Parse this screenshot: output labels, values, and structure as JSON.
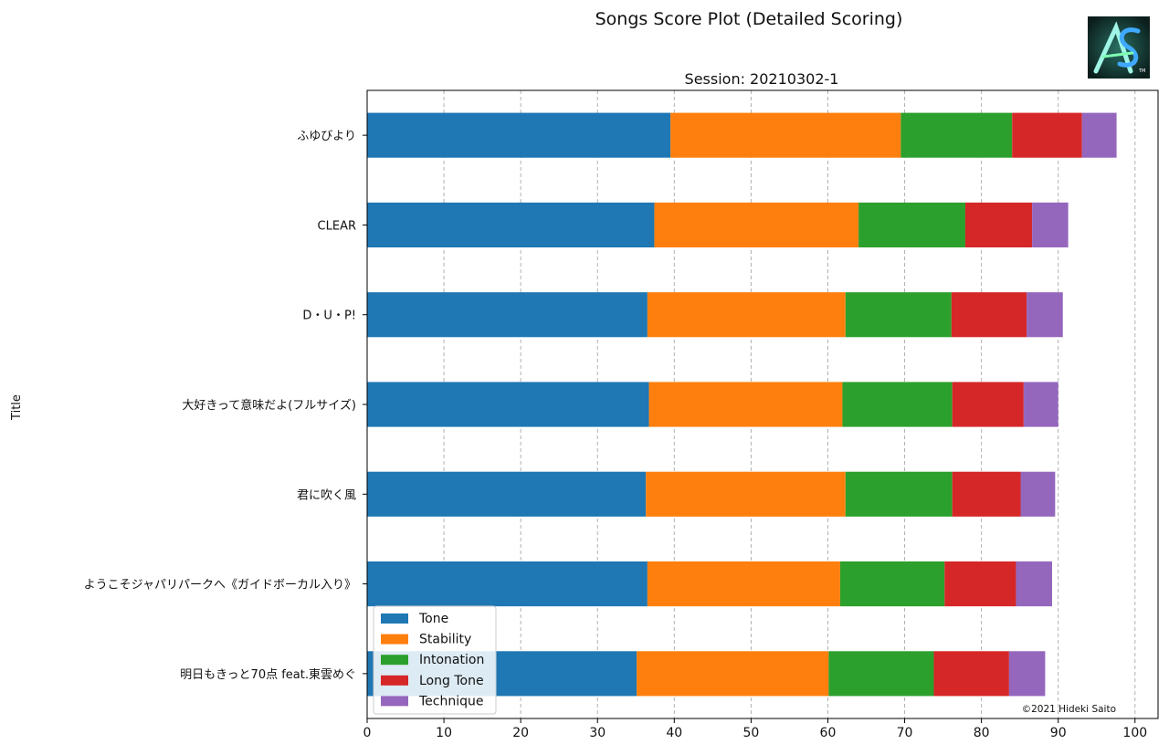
{
  "figure": {
    "suptitle": "Songs Score Plot (Detailed Scoring)",
    "credit": "©2021 Hideki Saito",
    "logo_icon": "logo-emblem-icon"
  },
  "chart_data": {
    "type": "bar",
    "orientation": "horizontal",
    "stacked": true,
    "title": "Session: 20210302-1",
    "xlabel": "",
    "ylabel": "Title",
    "xlim": [
      0,
      103
    ],
    "xticks": [
      0,
      10,
      20,
      30,
      40,
      50,
      60,
      70,
      80,
      90,
      100
    ],
    "grid": "x-dashed",
    "legend_position": "lower-left",
    "categories": [
      "ふゆびより",
      "CLEAR",
      "D・U・P!",
      "大好きって意味だよ(フルサイズ)",
      "君に吹く風",
      "ようこそジャパリパークへ《ガイドボーカル入り》",
      "明日もきっと70点 feat.東雲めぐ"
    ],
    "series": [
      {
        "name": "Tone",
        "color": "#1f77b4",
        "values": [
          39.5,
          37.4,
          36.5,
          36.7,
          36.3,
          36.5,
          35.1
        ]
      },
      {
        "name": "Stability",
        "color": "#ff7f0e",
        "values": [
          30.0,
          26.6,
          25.8,
          25.2,
          26.0,
          25.1,
          25.0
        ]
      },
      {
        "name": "Intonation",
        "color": "#2ca02c",
        "values": [
          14.5,
          13.9,
          13.8,
          14.3,
          13.9,
          13.6,
          13.7
        ]
      },
      {
        "name": "Long Tone",
        "color": "#d62728",
        "values": [
          9.1,
          8.7,
          9.8,
          9.3,
          8.9,
          9.3,
          9.8
        ]
      },
      {
        "name": "Technique",
        "color": "#9467bd",
        "values": [
          4.5,
          4.7,
          4.7,
          4.5,
          4.5,
          4.7,
          4.7
        ]
      }
    ]
  }
}
